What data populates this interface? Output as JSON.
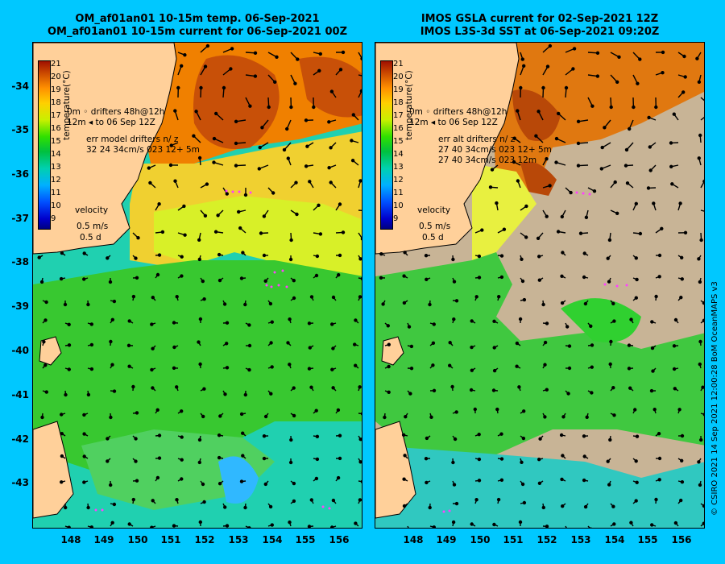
{
  "titles": {
    "left_line1": "OM_af01an01 10-15m temp. 06-Sep-2021",
    "left_line2": "OM_af01an01 10-15m current for 06-Sep-2021 00Z",
    "right_line1": "IMOS GSLA current for 02-Sep-2021 12Z",
    "right_line2": "IMOS L3S-3d SST at 06-Sep-2021 09:20Z"
  },
  "colorbar": {
    "label": "temperature(°C)",
    "ticks": [
      "21",
      "20",
      "19",
      "18",
      "17",
      "16",
      "15",
      "14",
      "13",
      "12",
      "11",
      "10",
      "9"
    ]
  },
  "left_legend": {
    "drifter_line1": "0m  ◦ drifters 48h@12h",
    "drifter_line2": "12m ◂ to 06 Sep 12Z",
    "err_line1": "err model drifters n/ z",
    "err_line2": "32 24 34cm/s 023 12+ 5m",
    "velocity_label": "velocity",
    "velocity_scale": "0.5 m/s",
    "velocity_days": "0.5 d"
  },
  "right_legend": {
    "drifter_line1": "0m  ◦ drifters 48h@12h",
    "drifter_line2": "12m ◂ to 06 Sep 12Z",
    "err_line1": "err alt drifters n/ z",
    "err_line2": "27 40 34cm/s 023 12+ 5m",
    "err_line3": "27 40 34cm/s 023 12m",
    "velocity_label": "velocity",
    "velocity_scale": "0.5 m/s",
    "velocity_days": "0.5 d"
  },
  "axes": {
    "lat_labels": [
      "-34",
      "-35",
      "-36",
      "-37",
      "-38",
      "-39",
      "-40",
      "-41",
      "-42",
      "-43"
    ],
    "lon_labels": [
      "148",
      "149",
      "150",
      "151",
      "152",
      "153",
      "154",
      "155",
      "156"
    ]
  },
  "credit": "© CSIRO 2021   14 Sep 2021 12:00:28 BoM OceanMAPS v3",
  "colors": {
    "background": "#00c8ff",
    "land": "#ffd09a",
    "cloud": "#c8b496",
    "warm": "#d86a10",
    "yellow": "#e8f040",
    "green": "#40cc30",
    "cyan": "#20d0a0",
    "drifter": "#ff40ff"
  }
}
